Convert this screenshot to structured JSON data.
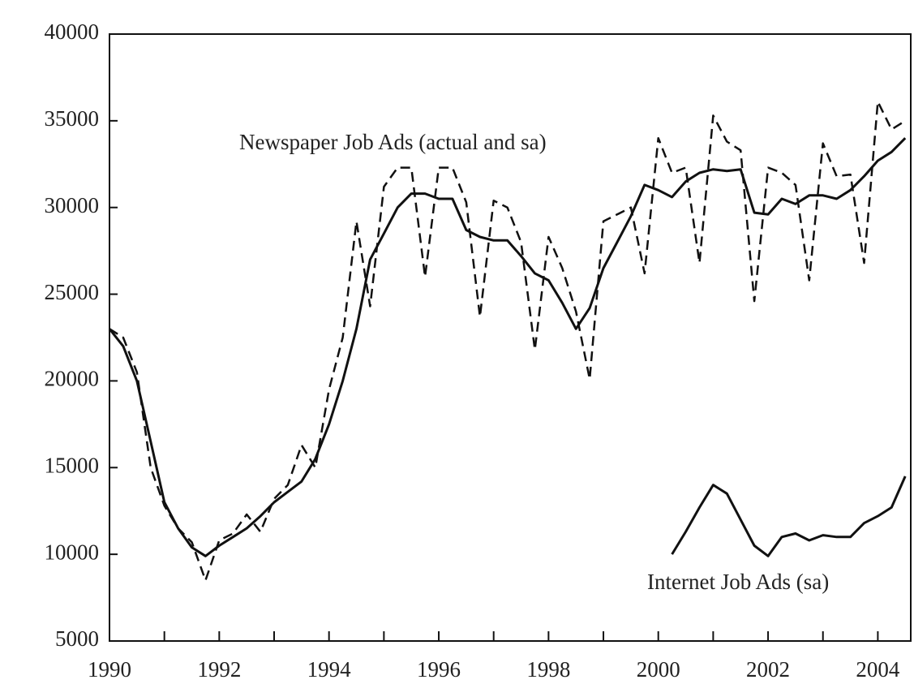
{
  "chart_data": {
    "type": "line",
    "x": [
      1990,
      1990.25,
      1990.5,
      1990.75,
      1991,
      1991.25,
      1991.5,
      1991.75,
      1992,
      1992.25,
      1992.5,
      1992.75,
      1993,
      1993.25,
      1993.5,
      1993.75,
      1994,
      1994.25,
      1994.5,
      1994.75,
      1995,
      1995.25,
      1995.5,
      1995.75,
      1996,
      1996.25,
      1996.5,
      1996.75,
      1997,
      1997.25,
      1997.5,
      1997.75,
      1998,
      1998.25,
      1998.5,
      1998.75,
      1999,
      1999.25,
      1999.5,
      1999.75,
      2000,
      2000.25,
      2000.5,
      2000.75,
      2001,
      2001.25,
      2001.5,
      2001.75,
      2002,
      2002.25,
      2002.5,
      2002.75,
      2003,
      2003.25,
      2003.5,
      2003.75,
      2004,
      2004.25,
      2004.5
    ],
    "series": [
      {
        "color": "#111111",
        "dashed": false,
        "values": [
          23000,
          22000,
          20000,
          16500,
          13000,
          11500,
          10400,
          9900,
          10500,
          11000,
          11500,
          12200,
          13000,
          13600,
          14200,
          15500,
          17500,
          20000,
          23000,
          27000,
          28500,
          30000,
          30800,
          30800,
          30500,
          30500,
          28700,
          28300,
          28100,
          28100,
          27200,
          26200,
          25800,
          24500,
          23000,
          24200,
          26500,
          28000,
          29500,
          31300,
          31000,
          30600,
          31500,
          32000,
          32200,
          32100,
          32200,
          29700,
          29600,
          30500,
          30200,
          30700,
          30700,
          30500,
          31000,
          31800,
          32700,
          33200,
          34000
        ]
      },
      {
        "color": "#111111",
        "dashed": true,
        "values": [
          23000,
          22500,
          20500,
          15000,
          12800,
          11500,
          10700,
          8500,
          10800,
          11200,
          12300,
          11300,
          13200,
          14000,
          16300,
          15000,
          19500,
          22500,
          29200,
          24300,
          31200,
          32300,
          32300,
          26000,
          32300,
          32300,
          30300,
          23700,
          30400,
          30000,
          28000,
          21800,
          28300,
          26500,
          24000,
          20100,
          29200,
          29600,
          30000,
          26200,
          34000,
          32000,
          32300,
          26800,
          35300,
          33800,
          33300,
          24600,
          32300,
          32000,
          31300,
          25800,
          33700,
          31800,
          31900,
          26800,
          36100,
          34500,
          35000
        ]
      },
      {
        "color": "#111111",
        "dashed": false,
        "values": [
          null,
          null,
          null,
          null,
          null,
          null,
          null,
          null,
          null,
          null,
          null,
          null,
          null,
          null,
          null,
          null,
          null,
          null,
          null,
          null,
          null,
          null,
          null,
          null,
          null,
          null,
          null,
          null,
          null,
          null,
          null,
          null,
          null,
          null,
          null,
          null,
          null,
          null,
          null,
          null,
          null,
          10000,
          11300,
          12700,
          14000,
          13500,
          12000,
          10500,
          9900,
          11000,
          11200,
          10800,
          11100,
          11000,
          11000,
          11800,
          12200,
          12700,
          14500
        ]
      }
    ],
    "annotations": [
      "Newspaper Job Ads (actual and sa)",
      "Internet Job Ads (sa)"
    ],
    "xlim": [
      1990,
      2004.6
    ],
    "xticks": [
      1990,
      1992,
      1994,
      1996,
      1998,
      2000,
      2002,
      2004
    ],
    "xminorticks": [
      1991,
      1993,
      1995,
      1997,
      1999,
      2001,
      2003
    ],
    "ylim": [
      5000,
      40000
    ],
    "yticks": [
      5000,
      10000,
      15000,
      20000,
      25000,
      30000,
      35000,
      40000
    ],
    "grid": false
  }
}
